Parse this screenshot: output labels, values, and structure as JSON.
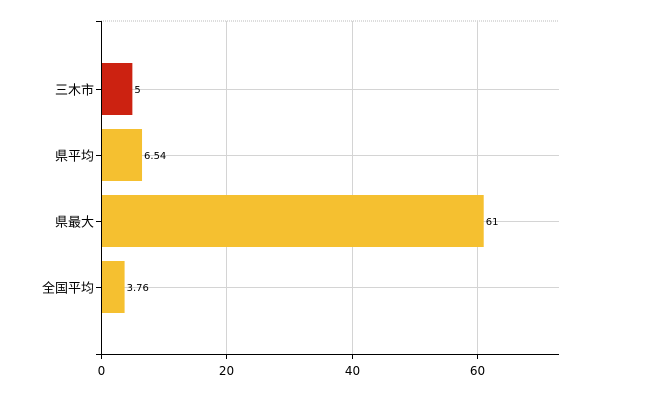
{
  "chart_data": {
    "type": "bar",
    "orientation": "horizontal",
    "categories": [
      "三木市",
      "県平均",
      "県最大",
      "全国平均"
    ],
    "values": [
      5,
      6.54,
      61,
      3.76
    ],
    "value_labels": [
      "5",
      "6.54",
      "61",
      "3.76"
    ],
    "colors": [
      "#cc2211",
      "#f5c030",
      "#f5c030",
      "#f5c030"
    ],
    "xlim": [
      0,
      73
    ],
    "xticks": [
      0,
      20,
      40,
      60
    ],
    "xtick_labels": [
      "0",
      "20",
      "40",
      "60"
    ],
    "grid": true,
    "title": "",
    "xlabel": "",
    "ylabel": ""
  }
}
